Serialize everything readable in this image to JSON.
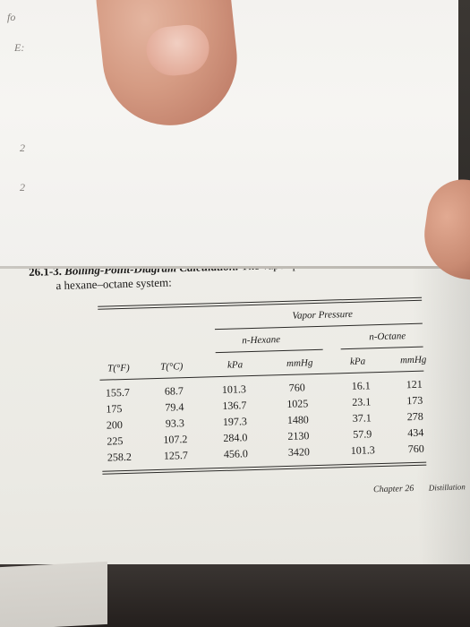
{
  "problem": {
    "number": "26.1-3.",
    "title": "Boiling-Point-Diagram Calculation.",
    "line1": "The vapor-pressure data are given below for",
    "line2": "a hexane–octane system:"
  },
  "table": {
    "super_header": "Vapor Pressure",
    "group_headers": [
      "n-Hexane",
      "n-Octane"
    ],
    "column_headers": [
      "T(°F)",
      "T(°C)",
      "kPa",
      "mmHg",
      "kPa",
      "mmHg"
    ],
    "rows": [
      [
        "155.7",
        "68.7",
        "101.3",
        "760",
        "16.1",
        "121"
      ],
      [
        "175",
        "79.4",
        "136.7",
        "1025",
        "23.1",
        "173"
      ],
      [
        "200",
        "93.3",
        "197.3",
        "1480",
        "37.1",
        "278"
      ],
      [
        "225",
        "107.2",
        "284.0",
        "2130",
        "57.9",
        "434"
      ],
      [
        "258.2",
        "125.7",
        "456.0",
        "3420",
        "101.3",
        "760"
      ]
    ]
  },
  "footer": {
    "chapter": "Chapter 26",
    "section": "Distillation"
  },
  "folded_page_glyphs": [
    "fo",
    "E:",
    "2",
    "2"
  ]
}
